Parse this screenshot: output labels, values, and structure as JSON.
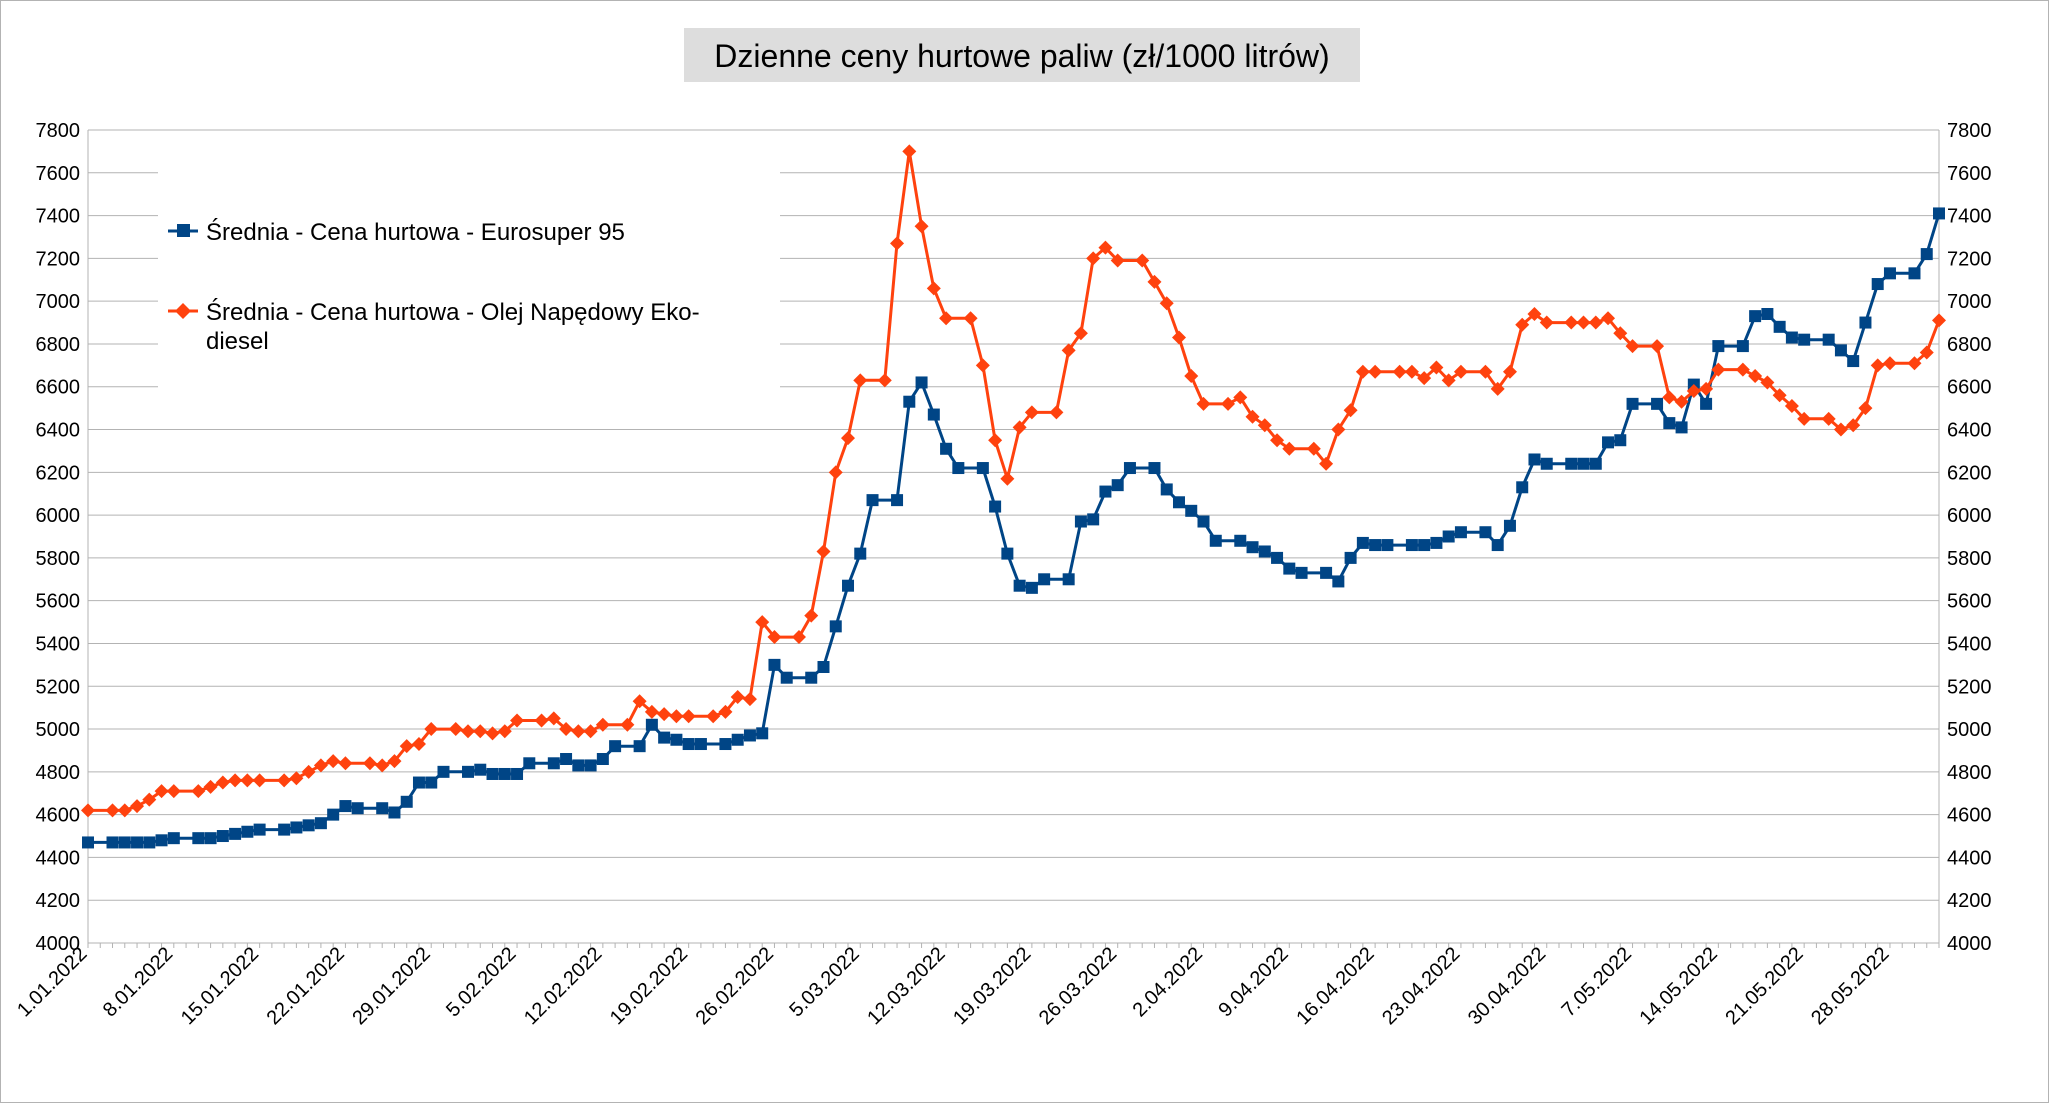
{
  "chart_data": {
    "type": "line",
    "title": "Dzienne ceny hurtowe paliw (zł/1000 litrów)",
    "xlabel": "",
    "ylabel": "",
    "ylim": [
      4000,
      7800
    ],
    "y_ticks": [
      "4000",
      "4200",
      "4400",
      "4600",
      "4800",
      "5000",
      "5200",
      "5400",
      "5600",
      "5800",
      "6000",
      "6200",
      "6400",
      "6600",
      "6800",
      "7000",
      "7200",
      "7400",
      "7600",
      "7800"
    ],
    "x_ticks": [
      "1.01.2022",
      "8.01.2022",
      "15.01.2022",
      "22.01.2022",
      "29.01.2022",
      "5.02.2022",
      "12.02.2022",
      "19.02.2022",
      "26.02.2022",
      "5.03.2022",
      "12.03.2022",
      "19.03.2022",
      "26.03.2022",
      "2.04.2022",
      "9.04.2022",
      "16.04.2022",
      "23.04.2022",
      "30.04.2022",
      "7.05.2022",
      "14.05.2022",
      "21.05.2022",
      "28.05.2022"
    ],
    "grid": "horizontal",
    "legend_position": "top-left",
    "colors": {
      "eurosuper": "#004586",
      "diesel": "#ff420e",
      "title_bg": "#dddddd",
      "grid": "#b3b3b3"
    },
    "series": [
      {
        "name": "Średnia - Cena hurtowa  - Eurosuper 95",
        "legend_lines": [
          "Średnia - Cena hurtowa  - Eurosuper 95"
        ],
        "marker": "square",
        "points": [
          [
            0,
            4470
          ],
          [
            2,
            4470
          ],
          [
            3,
            4470
          ],
          [
            4,
            4470
          ],
          [
            5,
            4470
          ],
          [
            6,
            4480
          ],
          [
            7,
            4490
          ],
          [
            9,
            4490
          ],
          [
            10,
            4490
          ],
          [
            11,
            4500
          ],
          [
            12,
            4510
          ],
          [
            13,
            4520
          ],
          [
            14,
            4530
          ],
          [
            16,
            4530
          ],
          [
            17,
            4540
          ],
          [
            18,
            4550
          ],
          [
            19,
            4560
          ],
          [
            20,
            4600
          ],
          [
            21,
            4640
          ],
          [
            22,
            4630
          ],
          [
            24,
            4630
          ],
          [
            25,
            4610
          ],
          [
            26,
            4660
          ],
          [
            27,
            4750
          ],
          [
            28,
            4750
          ],
          [
            29,
            4800
          ],
          [
            31,
            4800
          ],
          [
            32,
            4810
          ],
          [
            33,
            4790
          ],
          [
            34,
            4790
          ],
          [
            35,
            4790
          ],
          [
            36,
            4840
          ],
          [
            38,
            4840
          ],
          [
            39,
            4860
          ],
          [
            40,
            4830
          ],
          [
            41,
            4830
          ],
          [
            42,
            4860
          ],
          [
            43,
            4920
          ],
          [
            45,
            4920
          ],
          [
            46,
            5020
          ],
          [
            47,
            4960
          ],
          [
            48,
            4950
          ],
          [
            49,
            4930
          ],
          [
            50,
            4930
          ],
          [
            52,
            4930
          ],
          [
            53,
            4950
          ],
          [
            54,
            4970
          ],
          [
            55,
            4980
          ],
          [
            56,
            5300
          ],
          [
            57,
            5240
          ],
          [
            59,
            5240
          ],
          [
            60,
            5290
          ],
          [
            61,
            5480
          ],
          [
            62,
            5670
          ],
          [
            63,
            5820
          ],
          [
            64,
            6070
          ],
          [
            66,
            6070
          ],
          [
            67,
            6530
          ],
          [
            68,
            6620
          ],
          [
            69,
            6470
          ],
          [
            70,
            6310
          ],
          [
            71,
            6220
          ],
          [
            73,
            6220
          ],
          [
            74,
            6040
          ],
          [
            75,
            5820
          ],
          [
            76,
            5670
          ],
          [
            77,
            5660
          ],
          [
            78,
            5700
          ],
          [
            80,
            5700
          ],
          [
            81,
            5970
          ],
          [
            82,
            5980
          ],
          [
            83,
            6110
          ],
          [
            84,
            6140
          ],
          [
            85,
            6220
          ],
          [
            87,
            6220
          ],
          [
            88,
            6120
          ],
          [
            89,
            6060
          ],
          [
            90,
            6020
          ],
          [
            91,
            5970
          ],
          [
            92,
            5880
          ],
          [
            94,
            5880
          ],
          [
            95,
            5850
          ],
          [
            96,
            5830
          ],
          [
            97,
            5800
          ],
          [
            98,
            5750
          ],
          [
            99,
            5730
          ],
          [
            101,
            5730
          ],
          [
            102,
            5690
          ],
          [
            103,
            5800
          ],
          [
            104,
            5870
          ],
          [
            105,
            5860
          ],
          [
            106,
            5860
          ],
          [
            108,
            5860
          ],
          [
            109,
            5860
          ],
          [
            110,
            5870
          ],
          [
            111,
            5900
          ],
          [
            112,
            5920
          ],
          [
            114,
            5920
          ],
          [
            115,
            5860
          ],
          [
            116,
            5950
          ],
          [
            117,
            6130
          ],
          [
            118,
            6260
          ],
          [
            119,
            6240
          ],
          [
            121,
            6240
          ],
          [
            122,
            6240
          ],
          [
            123,
            6240
          ],
          [
            124,
            6340
          ],
          [
            125,
            6350
          ],
          [
            126,
            6520
          ],
          [
            128,
            6520
          ],
          [
            129,
            6430
          ],
          [
            130,
            6410
          ],
          [
            131,
            6610
          ],
          [
            132,
            6520
          ],
          [
            133,
            6790
          ],
          [
            135,
            6790
          ],
          [
            136,
            6930
          ],
          [
            137,
            6940
          ],
          [
            138,
            6880
          ],
          [
            139,
            6830
          ],
          [
            140,
            6820
          ],
          [
            142,
            6820
          ],
          [
            143,
            6770
          ],
          [
            144,
            6720
          ],
          [
            145,
            6900
          ],
          [
            146,
            7080
          ],
          [
            147,
            7130
          ],
          [
            149,
            7130
          ],
          [
            150,
            7220
          ],
          [
            151,
            7410
          ]
        ]
      },
      {
        "name": "Średnia - Cena hurtowa - Olej Napędowy Eko-diesel",
        "legend_lines": [
          "Średnia - Cena hurtowa - Olej Napędowy Eko-",
          "diesel"
        ],
        "marker": "diamond",
        "points": [
          [
            0,
            4620
          ],
          [
            2,
            4620
          ],
          [
            3,
            4620
          ],
          [
            4,
            4640
          ],
          [
            5,
            4670
          ],
          [
            6,
            4710
          ],
          [
            7,
            4710
          ],
          [
            9,
            4710
          ],
          [
            10,
            4730
          ],
          [
            11,
            4750
          ],
          [
            12,
            4760
          ],
          [
            13,
            4760
          ],
          [
            14,
            4760
          ],
          [
            16,
            4760
          ],
          [
            17,
            4770
          ],
          [
            18,
            4800
          ],
          [
            19,
            4830
          ],
          [
            20,
            4850
          ],
          [
            21,
            4840
          ],
          [
            23,
            4840
          ],
          [
            24,
            4830
          ],
          [
            25,
            4850
          ],
          [
            26,
            4920
          ],
          [
            27,
            4930
          ],
          [
            28,
            5000
          ],
          [
            30,
            5000
          ],
          [
            31,
            4990
          ],
          [
            32,
            4990
          ],
          [
            33,
            4980
          ],
          [
            34,
            4990
          ],
          [
            35,
            5040
          ],
          [
            37,
            5040
          ],
          [
            38,
            5050
          ],
          [
            39,
            5000
          ],
          [
            40,
            4990
          ],
          [
            41,
            4990
          ],
          [
            42,
            5020
          ],
          [
            44,
            5020
          ],
          [
            45,
            5130
          ],
          [
            46,
            5080
          ],
          [
            47,
            5070
          ],
          [
            48,
            5060
          ],
          [
            49,
            5060
          ],
          [
            51,
            5060
          ],
          [
            52,
            5080
          ],
          [
            53,
            5150
          ],
          [
            54,
            5140
          ],
          [
            55,
            5500
          ],
          [
            56,
            5430
          ],
          [
            58,
            5430
          ],
          [
            59,
            5530
          ],
          [
            60,
            5830
          ],
          [
            61,
            6200
          ],
          [
            62,
            6360
          ],
          [
            63,
            6630
          ],
          [
            65,
            6630
          ],
          [
            66,
            7270
          ],
          [
            67,
            7700
          ],
          [
            68,
            7350
          ],
          [
            69,
            7060
          ],
          [
            70,
            6920
          ],
          [
            72,
            6920
          ],
          [
            73,
            6700
          ],
          [
            74,
            6350
          ],
          [
            75,
            6170
          ],
          [
            76,
            6410
          ],
          [
            77,
            6480
          ],
          [
            79,
            6480
          ],
          [
            80,
            6770
          ],
          [
            81,
            6850
          ],
          [
            82,
            7200
          ],
          [
            83,
            7250
          ],
          [
            84,
            7190
          ],
          [
            86,
            7190
          ],
          [
            87,
            7090
          ],
          [
            88,
            6990
          ],
          [
            89,
            6830
          ],
          [
            90,
            6650
          ],
          [
            91,
            6520
          ],
          [
            93,
            6520
          ],
          [
            94,
            6550
          ],
          [
            95,
            6460
          ],
          [
            96,
            6420
          ],
          [
            97,
            6350
          ],
          [
            98,
            6310
          ],
          [
            100,
            6310
          ],
          [
            101,
            6240
          ],
          [
            102,
            6400
          ],
          [
            103,
            6490
          ],
          [
            104,
            6670
          ],
          [
            105,
            6670
          ],
          [
            107,
            6670
          ],
          [
            108,
            6670
          ],
          [
            109,
            6640
          ],
          [
            110,
            6690
          ],
          [
            111,
            6630
          ],
          [
            112,
            6670
          ],
          [
            114,
            6670
          ],
          [
            115,
            6590
          ],
          [
            116,
            6670
          ],
          [
            117,
            6890
          ],
          [
            118,
            6940
          ],
          [
            119,
            6900
          ],
          [
            121,
            6900
          ],
          [
            122,
            6900
          ],
          [
            123,
            6900
          ],
          [
            124,
            6920
          ],
          [
            125,
            6850
          ],
          [
            126,
            6790
          ],
          [
            128,
            6790
          ],
          [
            129,
            6550
          ],
          [
            130,
            6530
          ],
          [
            131,
            6580
          ],
          [
            132,
            6590
          ],
          [
            133,
            6680
          ],
          [
            135,
            6680
          ],
          [
            136,
            6650
          ],
          [
            137,
            6620
          ],
          [
            138,
            6560
          ],
          [
            139,
            6510
          ],
          [
            140,
            6450
          ],
          [
            142,
            6450
          ],
          [
            143,
            6400
          ],
          [
            144,
            6420
          ],
          [
            145,
            6500
          ],
          [
            146,
            6700
          ],
          [
            147,
            6710
          ],
          [
            149,
            6710
          ],
          [
            150,
            6760
          ],
          [
            151,
            6910
          ]
        ]
      }
    ]
  }
}
